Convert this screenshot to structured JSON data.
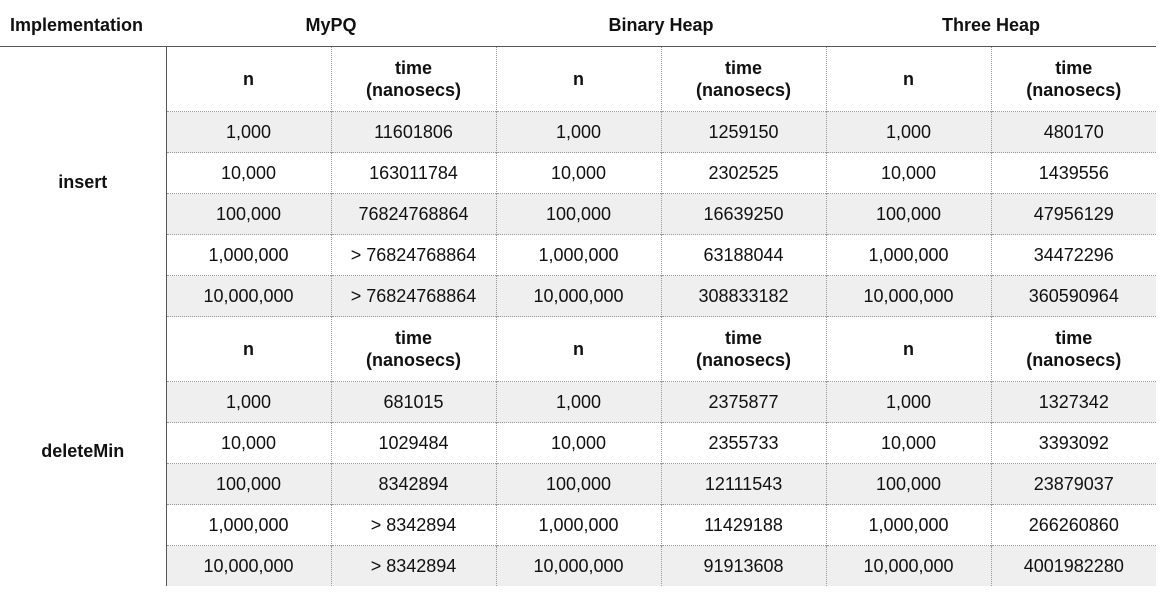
{
  "header": {
    "implementation_label": "Implementation",
    "implementations": [
      "MyPQ",
      "Binary Heap",
      "Three Heap"
    ]
  },
  "column_labels": {
    "n": "n",
    "time_line1": "time",
    "time_line2": "(nanosecs)"
  },
  "sections": [
    {
      "operation": "insert",
      "rows": [
        [
          "1,000",
          "11601806",
          "1,000",
          "1259150",
          "1,000",
          "480170"
        ],
        [
          "10,000",
          "163011784",
          "10,000",
          "2302525",
          "10,000",
          "1439556"
        ],
        [
          "100,000",
          "76824768864",
          "100,000",
          "16639250",
          "100,000",
          "47956129"
        ],
        [
          "1,000,000",
          "> 76824768864",
          "1,000,000",
          "63188044",
          "1,000,000",
          "34472296"
        ],
        [
          "10,000,000",
          "> 76824768864",
          "10,000,000",
          "308833182",
          "10,000,000",
          "360590964"
        ]
      ]
    },
    {
      "operation": "deleteMin",
      "rows": [
        [
          "1,000",
          "681015",
          "1,000",
          "2375877",
          "1,000",
          "1327342"
        ],
        [
          "10,000",
          "1029484",
          "10,000",
          "2355733",
          "10,000",
          "3393092"
        ],
        [
          "100,000",
          "8342894",
          "100,000",
          "12111543",
          "100,000",
          "23879037"
        ],
        [
          "1,000,000",
          "> 8342894",
          "1,000,000",
          "11429188",
          "1,000,000",
          "266260860"
        ],
        [
          "10,000,000",
          "> 8342894",
          "10,000,000",
          "91913608",
          "10,000,000",
          "4001982280"
        ]
      ]
    }
  ]
}
